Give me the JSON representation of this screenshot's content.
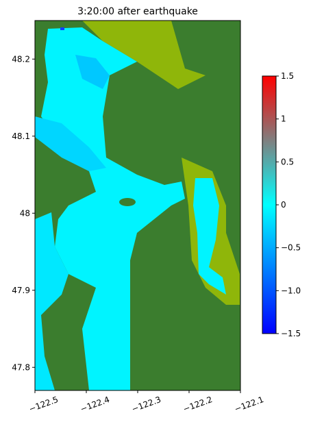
{
  "chart_data": {
    "type": "heatmap",
    "title": "3:20:00 after earthquake",
    "xlim": [
      -122.5,
      -122.1
    ],
    "xticks": [
      {
        "value": -122.5,
        "label": "−122.5"
      },
      {
        "value": -122.4,
        "label": "−122.4"
      },
      {
        "value": -122.3,
        "label": "−122.3"
      },
      {
        "value": -122.2,
        "label": "−122.2"
      },
      {
        "value": -122.1,
        "label": "−122.1"
      }
    ],
    "ylim": [
      47.77,
      48.25
    ],
    "yticks": [
      47.8,
      47.9,
      48.0,
      48.1,
      48.2
    ],
    "colorbar": {
      "lim": [
        -1.5,
        1.5
      ],
      "ticks": [
        {
          "value": -1.5,
          "label": "−1.5"
        },
        {
          "value": -1.0,
          "label": "−1.0"
        },
        {
          "value": -0.5,
          "label": "−0.5"
        },
        0.0,
        0.5,
        1.0,
        1.5
      ],
      "colors": [
        "#0000ff",
        "#00ffff",
        "#ff0000"
      ]
    }
  }
}
